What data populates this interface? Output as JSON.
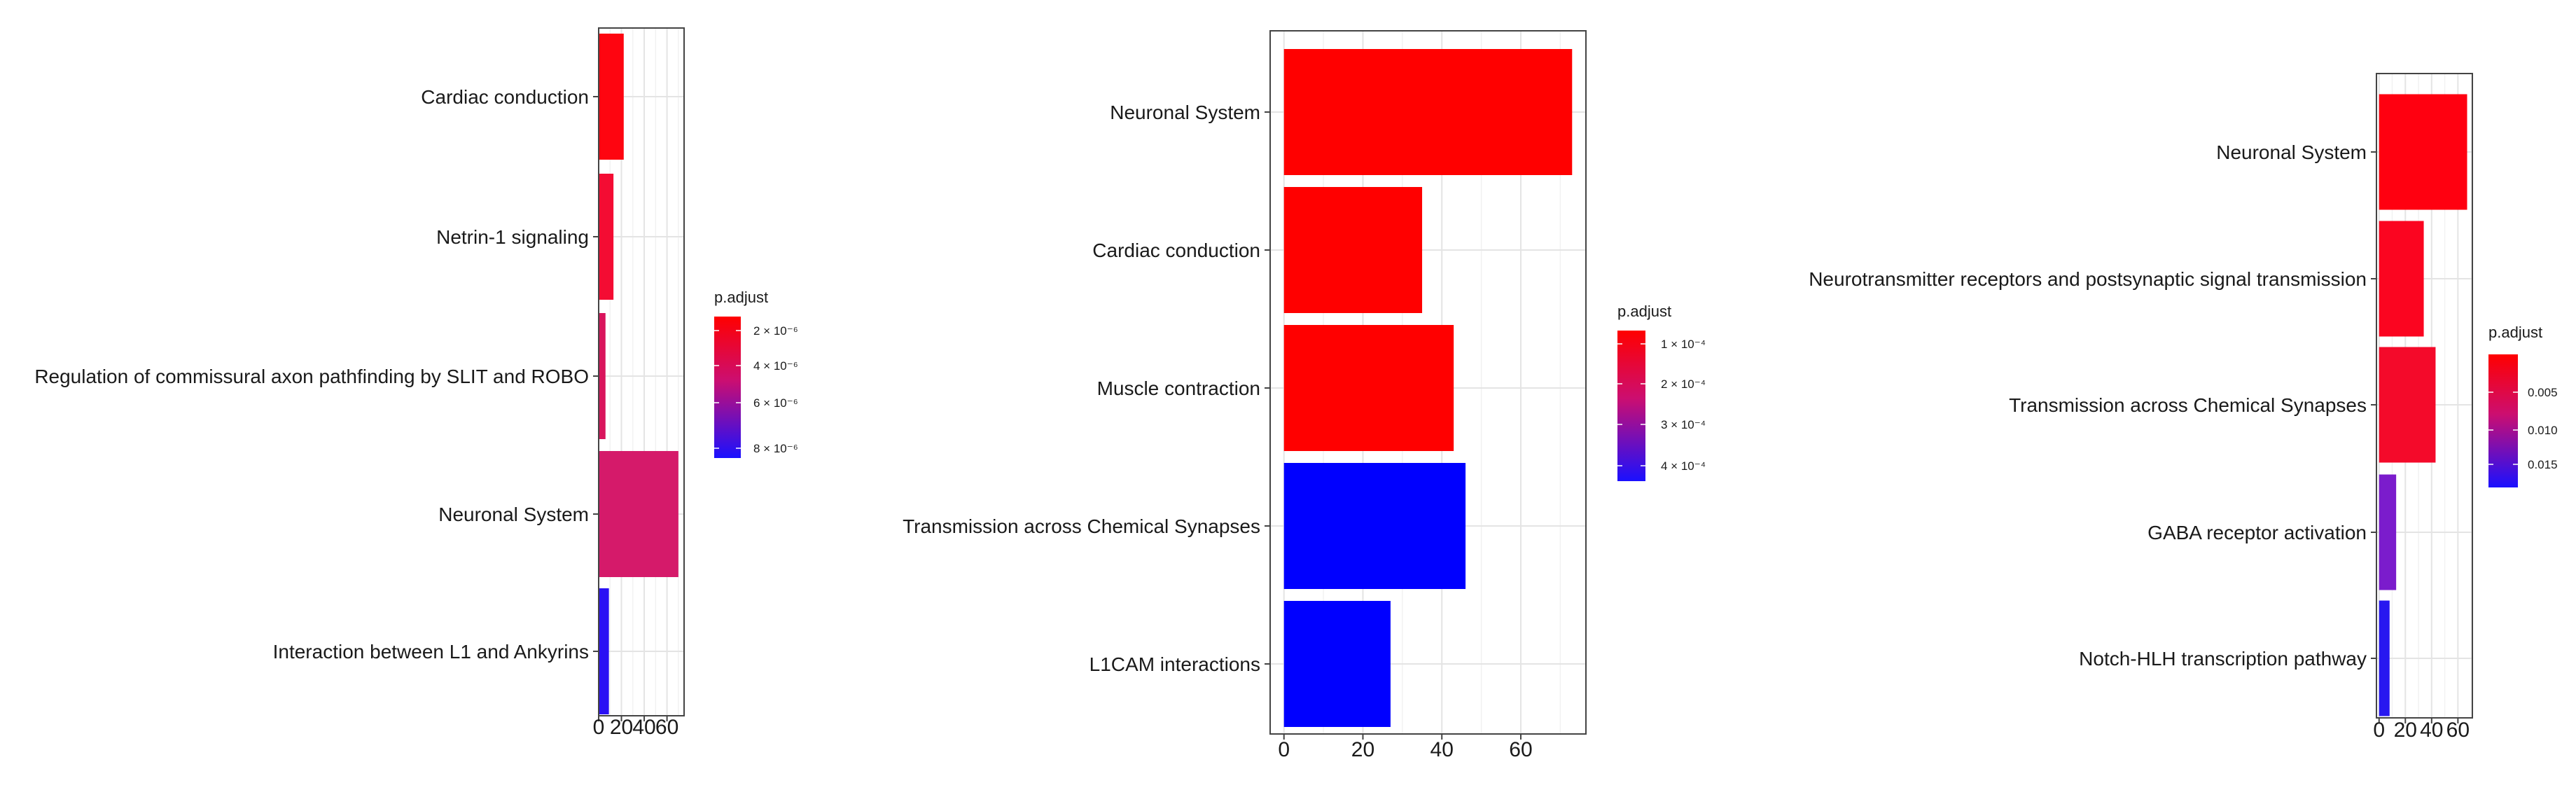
{
  "chart_data": [
    {
      "type": "bar",
      "orientation": "horizontal",
      "categories": [
        "Cardiac conduction",
        "Netrin-1 signaling",
        "Regulation of commissural axon pathfinding by SLIT and ROBO",
        "Neuronal System",
        "Interaction between L1 and Ankyrins"
      ],
      "values": [
        22,
        13,
        6,
        70,
        9
      ],
      "colors": [
        "#fe0510",
        "#f40c33",
        "#d9145c",
        "#d51a6a",
        "#2a10f4"
      ],
      "xticks": [
        0,
        20,
        40,
        60
      ],
      "xtick_labels": [
        "0",
        "20",
        "40",
        "60"
      ],
      "xlim": [
        0,
        75
      ],
      "grid": true,
      "legend": {
        "title": "p.adjust",
        "position": "right",
        "labels": [
          "2 × 10⁻⁶",
          "4 × 10⁻⁶",
          "6 × 10⁻⁶",
          "8 × 10⁻⁶"
        ],
        "gradient": [
          "#ff0000",
          "#0000ff"
        ]
      }
    },
    {
      "type": "bar",
      "orientation": "horizontal",
      "categories": [
        "Neuronal System",
        "Cardiac conduction",
        "Muscle contraction",
        "Transmission across Chemical Synapses",
        "L1CAM interactions"
      ],
      "values": [
        73,
        35,
        43,
        46,
        27
      ],
      "colors": [
        "#ff0000",
        "#ff0000",
        "#ff0000",
        "#0000ff",
        "#0000ff"
      ],
      "xticks": [
        0,
        20,
        40,
        60
      ],
      "xtick_labels": [
        "0",
        "20",
        "40",
        "60"
      ],
      "xlim": [
        -3.5,
        76.5
      ],
      "grid": true,
      "legend": {
        "title": "p.adjust",
        "position": "right",
        "labels": [
          "1 × 10⁻⁴",
          "2 × 10⁻⁴",
          "3 × 10⁻⁴",
          "4 × 10⁻⁴"
        ],
        "gradient": [
          "#ff0000",
          "#0000ff"
        ]
      }
    },
    {
      "type": "bar",
      "orientation": "horizontal",
      "categories": [
        "Neuronal System",
        "Neurotransmitter receptors and postsynaptic signal transmission",
        "Transmission across Chemical Synapses",
        "GABA receptor activation",
        "Notch-HLH transcription pathway"
      ],
      "values": [
        67,
        34,
        43,
        13,
        8
      ],
      "colors": [
        "#ff0010",
        "#fb0520",
        "#f40a2a",
        "#7b1ccc",
        "#2818f0"
      ],
      "xticks": [
        0,
        20,
        40,
        60
      ],
      "xtick_labels": [
        "0",
        "20",
        "40",
        "60"
      ],
      "xlim": [
        -2,
        71
      ],
      "grid": true,
      "legend": {
        "title": "p.adjust",
        "position": "right",
        "labels": [
          "0.005",
          "0.010",
          "0.015"
        ],
        "gradient": [
          "#ff0000",
          "#0000ff"
        ]
      }
    }
  ]
}
